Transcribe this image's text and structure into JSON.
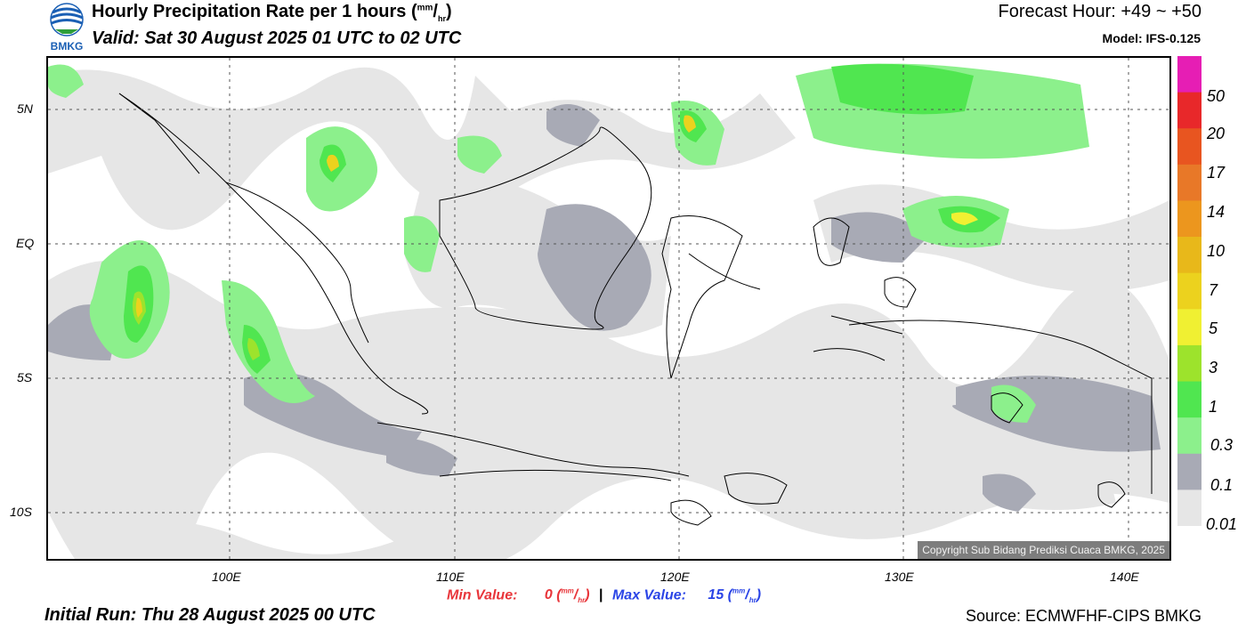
{
  "header": {
    "title_main": "Hourly Precipitation Rate per 1 hours (",
    "title_unit_num": "mm",
    "title_unit_sep": "/",
    "title_unit_den": "hr",
    "title_close": ")",
    "valid": "Valid: Sat 30 August 2025 01 UTC to 02 UTC",
    "forecast_hour": "Forecast Hour: +49 ~ +50",
    "model": "Model: IFS-0.125",
    "logo_text": "BMKG"
  },
  "map": {
    "copyright": "Copyright Sub Bidang Prediksi Cuaca BMKG, 2025",
    "lat_labels": [
      "5N",
      "EQ",
      "5S",
      "10S"
    ],
    "lon_labels": [
      "100E",
      "110E",
      "120E",
      "130E",
      "140E"
    ],
    "colors": {
      "c001": "#e6e6e6",
      "c01": "#a8aab5",
      "c03": "#8cf08c",
      "c1": "#50e650",
      "c3": "#9de32c",
      "c5": "#f0f032",
      "c7": "#ecd21e",
      "c10": "#e8b81a",
      "c14": "#ec961e",
      "c17": "#e87828",
      "c20": "#e85520",
      "c50": "#e8282a",
      "cmax": "#e61eb4"
    }
  },
  "colorbar": {
    "labels": [
      "50",
      "20",
      "17",
      "14",
      "10",
      "7",
      "5",
      "3",
      "1",
      "0.3",
      "0.1",
      "0.01"
    ],
    "colors": [
      "#e61eb4",
      "#e8282a",
      "#e85520",
      "#e87828",
      "#ec961e",
      "#e8b81a",
      "#ecd21e",
      "#f0f032",
      "#9de32c",
      "#50e650",
      "#8cf08c",
      "#a8aab5",
      "#e6e6e6"
    ]
  },
  "footer": {
    "min_label": "Min Value:",
    "min_value": "0",
    "max_label": "Max Value:",
    "max_value": "15",
    "unit_num": "mm",
    "unit_den": "hr",
    "separator": "|",
    "initial_run": "Initial Run: Thu 28 August 2025 00 UTC",
    "source": "Source: ECMWFHF-CIPS BMKG"
  }
}
